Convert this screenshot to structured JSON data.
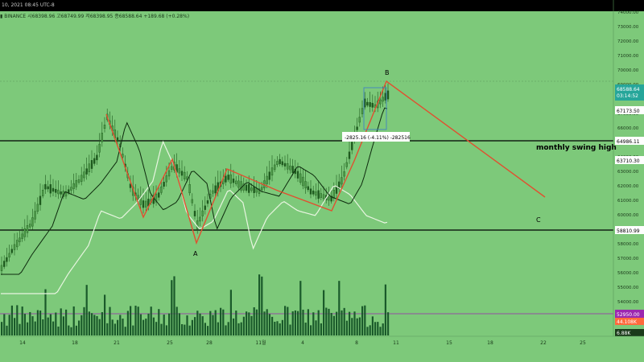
{
  "header": {
    "timestamp": "10, 2021 08:45 UTC-8",
    "symbol": "BINANCE",
    "ohlc": "시68398.96 고68749.99 저68398.95 종68588.64 +189.68 (+0.28%)"
  },
  "price_axis": {
    "ticks": [
      "74000.00",
      "73000.00",
      "72000.00",
      "71000.00",
      "70000.00",
      "69000.00",
      "68000.00",
      "67000.00",
      "66000.00",
      "65000.00",
      "64000.00",
      "63000.00",
      "62000.00",
      "61000.00",
      "60000.00",
      "59000.00",
      "58000.00",
      "57000.00",
      "56000.00",
      "55000.00",
      "54000.00",
      "53000.00",
      "52000.00"
    ],
    "current_price": "68588.64",
    "countdown": "03:14:52",
    "labels": {
      "level_67173": "67173.50",
      "level_64986": "64986.11",
      "ma_63710": "63710.30",
      "level_58810": "58810.99",
      "vol_ma": "52950.00",
      "vol_a": "44.108K",
      "vol_b": "6.88K"
    }
  },
  "time_axis": {
    "labels": [
      "14",
      "18",
      "21",
      "25",
      "28",
      "11월",
      "4",
      "8",
      "11",
      "15",
      "18",
      "22",
      "25"
    ]
  },
  "annotations": {
    "monthly_swing_high": "monthly swing high",
    "wave_a": "A",
    "wave_b": "B",
    "wave_c": "C",
    "measure": "-2825.16 (-4.11%) -282516"
  },
  "colors": {
    "background": "#7dc97a",
    "candle": "#1e5a1e",
    "ma_dark": "#0d2a0d",
    "ma_light": "#e8f5e0",
    "projection": "#e05030",
    "volume": "#1a5a2a",
    "current_price_badge": "#26a69a",
    "vol_ma_badge": "#9c27b0",
    "vol_a_badge": "#ff6a3d"
  }
}
